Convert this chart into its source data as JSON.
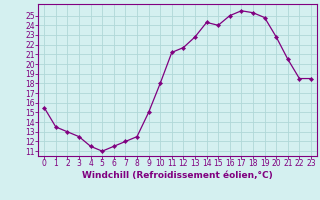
{
  "x": [
    0,
    1,
    2,
    3,
    4,
    5,
    6,
    7,
    8,
    9,
    10,
    11,
    12,
    13,
    14,
    15,
    16,
    17,
    18,
    19,
    20,
    21,
    22,
    23
  ],
  "y": [
    15.5,
    13.5,
    13.0,
    12.5,
    11.5,
    11.0,
    11.5,
    12.0,
    12.5,
    15.0,
    18.0,
    21.2,
    21.7,
    22.8,
    24.3,
    24.0,
    25.0,
    25.5,
    25.3,
    24.8,
    22.8,
    20.5,
    18.5,
    18.5
  ],
  "line_color": "#800080",
  "marker_color": "#800080",
  "bg_color": "#d4f0f0",
  "grid_color": "#b0d8d8",
  "axis_color": "#800080",
  "tick_color": "#800080",
  "xlabel": "Windchill (Refroidissement éolien,°C)",
  "xlabel_fontsize": 6.5,
  "tick_fontsize": 5.5,
  "ylim": [
    10.5,
    26.2
  ],
  "xlim": [
    -0.5,
    23.5
  ],
  "yticks": [
    11,
    12,
    13,
    14,
    15,
    16,
    17,
    18,
    19,
    20,
    21,
    22,
    23,
    24,
    25
  ],
  "xticks": [
    0,
    1,
    2,
    3,
    4,
    5,
    6,
    7,
    8,
    9,
    10,
    11,
    12,
    13,
    14,
    15,
    16,
    17,
    18,
    19,
    20,
    21,
    22,
    23
  ]
}
